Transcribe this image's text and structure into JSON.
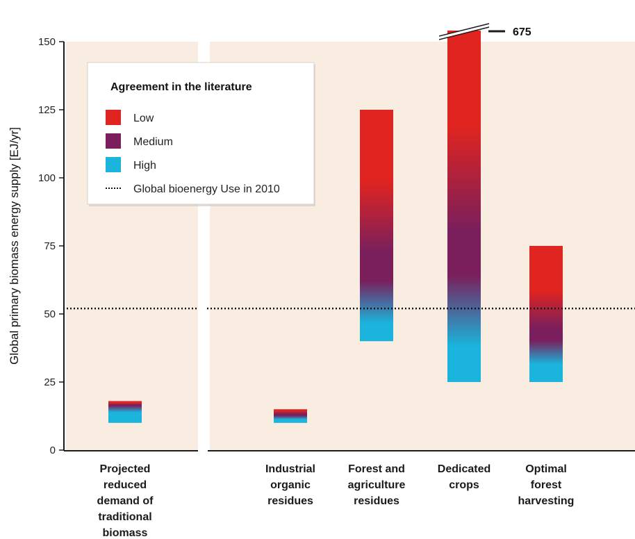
{
  "chart_data": {
    "type": "bar",
    "ylabel": "Global primary biomass energy supply [EJ/yr]",
    "ylim": [
      0,
      150
    ],
    "yticks": [
      0,
      25,
      50,
      75,
      100,
      125,
      150
    ],
    "grid": false,
    "legend": {
      "title": "Agreement in the literature",
      "placement": "top-left",
      "entries": [
        {
          "label": "Low",
          "color": "#e0241f"
        },
        {
          "label": "Medium",
          "color": "#7a1f5c"
        },
        {
          "label": "High",
          "color": "#1ab4dc"
        },
        {
          "label": "Global bioenergy Use in 2010",
          "style": "dotted-line"
        }
      ]
    },
    "reference_line": {
      "label": "Global bioenergy Use in 2010",
      "value": 52
    },
    "categories": [
      {
        "label": [
          "Projected",
          "reduced",
          "demand of",
          "traditional",
          "biomass"
        ],
        "min": 10,
        "max": 18,
        "bands": [
          {
            "agreement": "High",
            "from": 10,
            "to": 16
          },
          {
            "agreement": "Medium",
            "from": 16,
            "to": 17
          },
          {
            "agreement": "Low",
            "from": 17,
            "to": 18
          }
        ]
      },
      {
        "label": [
          "Industrial",
          "organic",
          "residues"
        ],
        "min": 10,
        "max": 15,
        "bands": [
          {
            "agreement": "High",
            "from": 10,
            "to": 12
          },
          {
            "agreement": "Medium",
            "from": 12,
            "to": 14
          },
          {
            "agreement": "Low",
            "from": 14,
            "to": 15
          }
        ]
      },
      {
        "label": [
          "Forest and",
          "agriculture",
          "residues"
        ],
        "min": 40,
        "max": 125,
        "bands": [
          {
            "agreement": "High",
            "from": 40,
            "to": 50
          },
          {
            "agreement": "Medium",
            "from": 50,
            "to": 85
          },
          {
            "agreement": "Low",
            "from": 85,
            "to": 125
          }
        ]
      },
      {
        "label": [
          "Dedicated",
          "crops"
        ],
        "min": 25,
        "max": 675,
        "axis_break": true,
        "max_label": "675",
        "bands": [
          {
            "agreement": "High",
            "from": 25,
            "to": 45
          },
          {
            "agreement": "Medium",
            "from": 45,
            "to": 100
          },
          {
            "agreement": "Low",
            "from": 100,
            "to": 675
          }
        ]
      },
      {
        "label": [
          "Optimal",
          "forest",
          "harvesting"
        ],
        "min": 25,
        "max": 75,
        "bands": [
          {
            "agreement": "High",
            "from": 25,
            "to": 35
          },
          {
            "agreement": "Medium",
            "from": 35,
            "to": 50
          },
          {
            "agreement": "Low",
            "from": 50,
            "to": 75
          }
        ]
      }
    ]
  }
}
